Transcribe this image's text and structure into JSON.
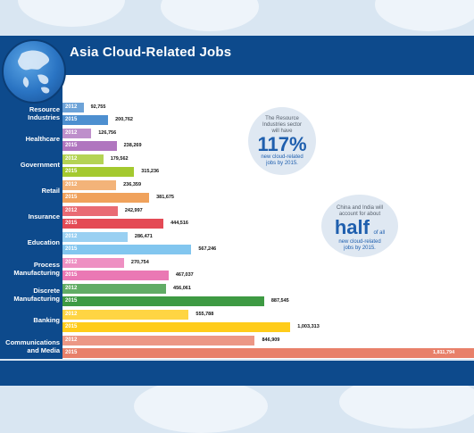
{
  "title": "Asia Cloud-Related Jobs",
  "chart_data": {
    "type": "bar",
    "orientation": "horizontal",
    "title": "Asia Cloud-Related Jobs",
    "categories": [
      "Resource Industries",
      "Healthcare",
      "Government",
      "Retail",
      "Insurance",
      "Education",
      "Process Manufacturing",
      "Discrete Manufacturing",
      "Banking",
      "Communications and Media"
    ],
    "category_lines": [
      [
        "Resource",
        "Industries"
      ],
      [
        "Healthcare"
      ],
      [
        "Government"
      ],
      [
        "Retail"
      ],
      [
        "Insurance"
      ],
      [
        "Education"
      ],
      [
        "Process",
        "Manufacturing"
      ],
      [
        "Discrete",
        "Manufacturing"
      ],
      [
        "Banking"
      ],
      [
        "Communications",
        "and Media"
      ]
    ],
    "series": [
      {
        "name": "2012",
        "values": [
          92755,
          126756,
          179562,
          236359,
          242997,
          286471,
          270754,
          456061,
          555788,
          846909
        ],
        "labels": [
          "92,755",
          "126,756",
          "179,562",
          "236,359",
          "242,997",
          "286,471",
          "270,754",
          "456,061",
          "555,788",
          "846,909"
        ]
      },
      {
        "name": "2015",
        "values": [
          200762,
          238269,
          315236,
          381675,
          444516,
          567246,
          467037,
          887545,
          1003313,
          1811794
        ],
        "labels": [
          "200,762",
          "238,269",
          "315,236",
          "381,675",
          "444,516",
          "567,246",
          "467,037",
          "887,545",
          "1,003,313",
          "1,811,794"
        ]
      }
    ],
    "colors_2012": [
      "#4d8fd0",
      "#b076bf",
      "#a4c92f",
      "#f0a25c",
      "#e44a55",
      "#82c6ef",
      "#ea78b4",
      "#3e9a43",
      "#ffcc1a",
      "#e8806a"
    ],
    "colors_2015": [
      "#4d8fd0",
      "#b076bf",
      "#a4c92f",
      "#f0a25c",
      "#e44a55",
      "#82c6ef",
      "#ea78b4",
      "#3e9a43",
      "#ffcc1a",
      "#e8806a"
    ],
    "annotations": [
      {
        "lines_before": [
          "The Resource",
          "Industries sector",
          "will have"
        ],
        "highlight": "117%",
        "lines_after": [
          "new cloud-related",
          "jobs by 2015."
        ]
      },
      {
        "lines_before": [
          "China and India will",
          "account for about"
        ],
        "highlight": "half",
        "inline_after": "of all",
        "lines_after": [
          "new cloud-related",
          "jobs by 2015."
        ]
      }
    ]
  }
}
